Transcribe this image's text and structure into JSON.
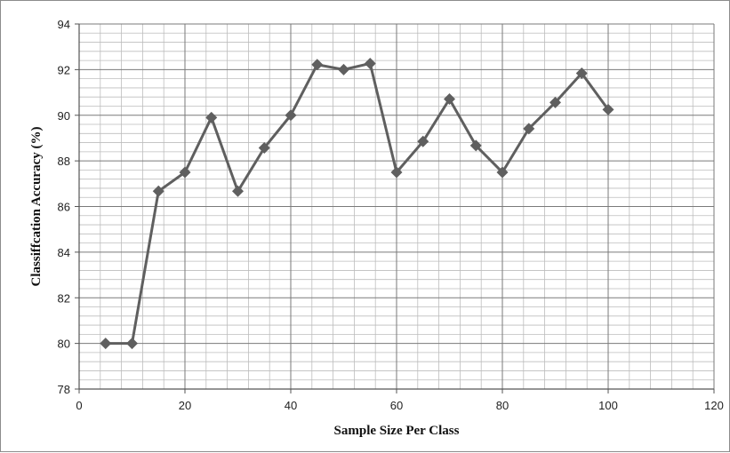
{
  "chart_data": {
    "type": "line",
    "title": "",
    "xlabel": "Sample Size Per Class",
    "ylabel": "Classiffcation Accuracy (%)",
    "xlim": [
      0,
      120
    ],
    "ylim": [
      78,
      94
    ],
    "x_ticks": [
      "0",
      "20",
      "40",
      "60",
      "80",
      "100",
      "120"
    ],
    "y_ticks": [
      "78",
      "80",
      "82",
      "84",
      "86",
      "88",
      "90",
      "92",
      "94"
    ],
    "grid": true,
    "legend": "none",
    "series": [
      {
        "color": "#5f5f5f",
        "marker": "diamond",
        "x": [
          5,
          10,
          15,
          20,
          25,
          30,
          35,
          40,
          45,
          50,
          55,
          60,
          65,
          70,
          75,
          80,
          85,
          90,
          95,
          100
        ],
        "values": [
          80.0,
          80.0,
          86.67,
          87.5,
          89.9,
          86.67,
          88.57,
          90.0,
          92.22,
          92.0,
          92.27,
          87.5,
          88.85,
          90.71,
          88.67,
          87.5,
          89.41,
          90.56,
          91.84,
          90.25
        ]
      }
    ]
  }
}
